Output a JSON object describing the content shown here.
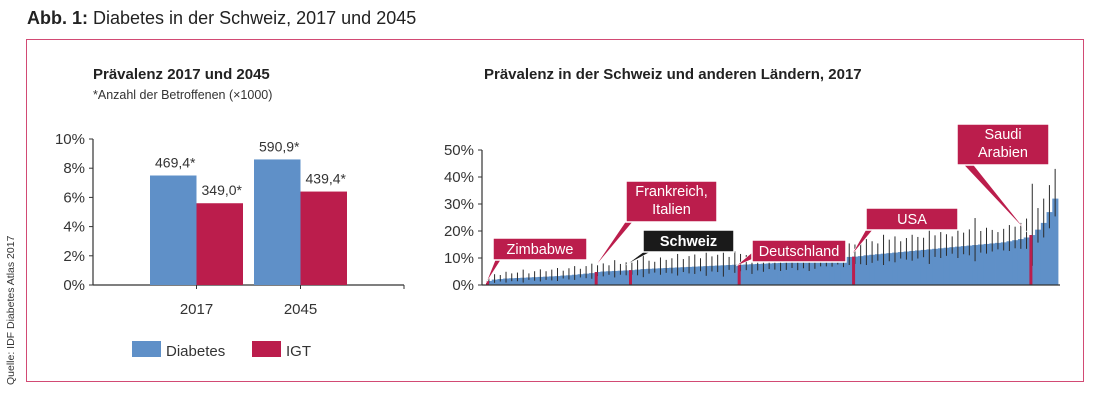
{
  "figure": {
    "label": "Abb. 1:",
    "title": "Diabetes in der Schweiz, 2017 und 2045",
    "source": "Quelle: IDF Diabetes Atlas 2017"
  },
  "colors": {
    "diabetes": "#5f90c8",
    "igt": "#bb1d4c",
    "frame": "#d24a74",
    "callout": "#bb1d4c",
    "callout_dark": "#1a1a1a"
  },
  "chart_data": [
    {
      "type": "bar",
      "title": "Prävalenz 2017 und 2045",
      "subtitle": "*Anzahl der Betroffenen (×1000)",
      "categories": [
        "2017",
        "2045"
      ],
      "ylim": [
        0,
        10
      ],
      "yticks": [
        "0%",
        "2%",
        "4%",
        "6%",
        "8%",
        "10%"
      ],
      "legend": "bottom",
      "series": [
        {
          "name": "Diabetes",
          "values": [
            7.5,
            8.6
          ],
          "labels": [
            "469,4*",
            "590,9*"
          ]
        },
        {
          "name": "IGT",
          "values": [
            5.6,
            6.4
          ],
          "labels": [
            "349,0*",
            "439,4*"
          ]
        }
      ]
    },
    {
      "type": "bar",
      "title": "Prävalenz in der Schweiz und anderen Ländern, 2017",
      "ylim": [
        0,
        50
      ],
      "yticks": [
        "0%",
        "10%",
        "20%",
        "30%",
        "40%",
        "50%"
      ],
      "values": [
        1.5,
        2,
        2.2,
        2.4,
        2.5,
        2.6,
        2.7,
        2.8,
        2.9,
        3.0,
        3.1,
        3.2,
        3.3,
        3.5,
        3.6,
        3.8,
        4.0,
        4.2,
        4.4,
        4.8,
        5.0,
        5.1,
        5.2,
        5.3,
        5.4,
        5.5,
        5.7,
        5.9,
        6.0,
        6.1,
        6.2,
        6.3,
        6.4,
        6.5,
        6.6,
        6.7,
        6.8,
        6.9,
        7.0,
        7.1,
        7.2,
        7.3,
        7.4,
        7.5,
        7.5,
        7.6,
        7.7,
        7.8,
        7.9,
        8.0,
        8.1,
        8.2,
        8.3,
        8.4,
        8.5,
        8.6,
        8.8,
        9.0,
        9.3,
        9.6,
        9.8,
        10.0,
        10.2,
        10.4,
        10.5,
        10.7,
        11.0,
        11.2,
        11.4,
        11.6,
        11.8,
        12.0,
        12.2,
        12.4,
        12.6,
        12.8,
        13.0,
        13.2,
        13.4,
        13.6,
        13.8,
        14.0,
        14.2,
        14.4,
        14.6,
        14.8,
        15.0,
        15.2,
        15.4,
        15.6,
        15.8,
        16.2,
        16.6,
        17.0,
        17.6,
        18.5,
        20.5,
        23.0,
        27.0,
        32.0
      ],
      "err": [
        1.5,
        2,
        1.5,
        2.5,
        1.8,
        2,
        3,
        1.5,
        2.2,
        2.8,
        2,
        2.5,
        3,
        1.8,
        2.6,
        3.2,
        2,
        2.8,
        3.5,
        2.5,
        3,
        2.2,
        4,
        2.5,
        3,
        2.8,
        3.5,
        5,
        3,
        2.5,
        4,
        3,
        3.5,
        5,
        3,
        4,
        4.5,
        3,
        6,
        3.5,
        4,
        7,
        3,
        5,
        4,
        3.5,
        6,
        4,
        5,
        3.5,
        4,
        5,
        4.5,
        3.5,
        5,
        4,
        6,
        5,
        4,
        4.5,
        5,
        4,
        6,
        5,
        4.5,
        5,
        6,
        5,
        4,
        7,
        5,
        6,
        4,
        5,
        6,
        5,
        4.5,
        9,
        5,
        6,
        5,
        4,
        7,
        5,
        6,
        10,
        5,
        6,
        5,
        4,
        5,
        6,
        5,
        6,
        7,
        19,
        8,
        9,
        10,
        11
      ],
      "highlights": [
        {
          "label": "Zimbabwe",
          "index": 0,
          "dark": false
        },
        {
          "label": "Frankreich, Italien",
          "index": 19,
          "dark": false
        },
        {
          "label": "Schweiz",
          "index": 25,
          "dark": true
        },
        {
          "label": "Deutschland",
          "index": 44,
          "dark": false
        },
        {
          "label": "USA",
          "index": 64,
          "dark": false
        },
        {
          "label": "Saudi Arabien",
          "index": 95,
          "dark": false
        }
      ]
    }
  ],
  "callouts": {
    "zimbabwe": "Zimbabwe",
    "frankreich_1": "Frankreich,",
    "frankreich_2": "Italien",
    "schweiz": "Schweiz",
    "deutschland": "Deutschland",
    "usa": "USA",
    "saudi_1": "Saudi",
    "saudi_2": "Arabien"
  }
}
